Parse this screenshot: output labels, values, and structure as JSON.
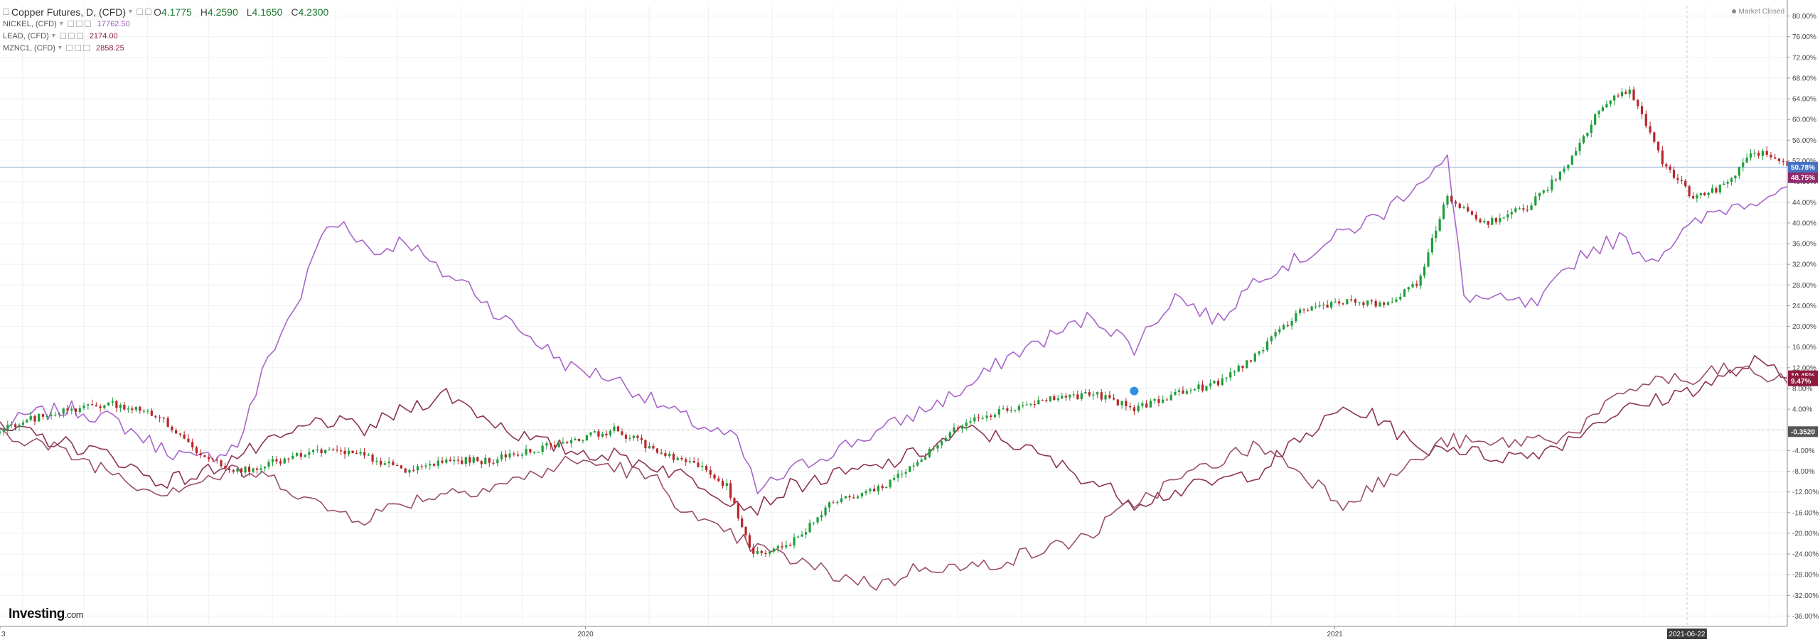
{
  "legend": {
    "main": {
      "name": "Copper Futures, D, (CFD)",
      "open": "4.1775",
      "high": "4.2590",
      "low": "4.1650",
      "close": "4.2300",
      "open_key": "O",
      "high_key": "H",
      "low_key": "L",
      "close_key": "C"
    },
    "overlays": [
      {
        "name": "NICKEL, (CFD)",
        "value": "17762.50",
        "color": "#9b59b6"
      },
      {
        "name": "LEAD, (CFD)",
        "value": "2174.00",
        "color": "#8b1a4a"
      },
      {
        "name": "MZNC1, (CFD)",
        "value": "2858.25",
        "color": "#8b1a4a"
      }
    ]
  },
  "status": {
    "market": "Market Closed"
  },
  "brand": {
    "name": "Investing",
    "domain": ".com"
  },
  "colors": {
    "up": "#1f9e3c",
    "down": "#b8262b",
    "nickel": "#a865c9",
    "lead": "#8e3355",
    "zinc": "#9a4d6e",
    "accent_blue": "#4472c4",
    "grid": "#eef0f2",
    "baseline": "#c9c9c9"
  },
  "chart_data": {
    "type": "line",
    "y_unit": "%",
    "ylim": [
      -38,
      82
    ],
    "y_ticks": [
      "80.00%",
      "76.00%",
      "72.00%",
      "68.00%",
      "64.00%",
      "60.00%",
      "56.00%",
      "52.00%",
      "48.00%",
      "44.00%",
      "40.00%",
      "36.00%",
      "32.00%",
      "28.00%",
      "24.00%",
      "20.00%",
      "16.00%",
      "12.00%",
      "8.00%",
      "4.00%",
      "0.00%",
      "-4.00%",
      "-8.00%",
      "-12.00%",
      "-16.00%",
      "-20.00%",
      "-24.00%",
      "-28.00%",
      "-32.00%",
      "-36.00%"
    ],
    "x_range": [
      "2019-03-21",
      "2021-08-10"
    ],
    "x_tick_labels": [
      {
        "date": "2019-03-21",
        "label": "3"
      },
      {
        "date": "2020-01-01",
        "label": "2020"
      },
      {
        "date": "2021-01-01",
        "label": "2021"
      }
    ],
    "highlight_date": {
      "date": "2021-06-22",
      "label": "2021-06-22"
    },
    "price_labels": [
      {
        "value": 50.78,
        "text": "50.78%",
        "color": "#4472c4"
      },
      {
        "value": 48.75,
        "text": "48.75%",
        "color": "#8e2a6a"
      },
      {
        "value": 10.45,
        "text": "10.45%",
        "color": "#8e1a3e"
      },
      {
        "value": 9.47,
        "text": "9.47%",
        "color": "#8e1a3e"
      },
      {
        "value": -0.352,
        "text": "-0.3520",
        "color": "#555555"
      }
    ],
    "baseline_value": 0,
    "horizontal_line_value": 50.78,
    "series": [
      {
        "name": "Copper Futures, D, (CFD)",
        "kind": "candles",
        "x": [
          "2019-03-21",
          "2019-04-05",
          "2019-04-25",
          "2019-05-15",
          "2019-06-05",
          "2019-06-25",
          "2019-07-15",
          "2019-08-05",
          "2019-08-25",
          "2019-09-15",
          "2019-10-05",
          "2019-10-25",
          "2019-11-15",
          "2019-12-05",
          "2019-12-25",
          "2020-01-15",
          "2020-02-05",
          "2020-02-25",
          "2020-03-10",
          "2020-03-23",
          "2020-04-10",
          "2020-05-01",
          "2020-05-25",
          "2020-06-15",
          "2020-07-05",
          "2020-07-25",
          "2020-08-15",
          "2020-09-05",
          "2020-09-25",
          "2020-10-15",
          "2020-11-05",
          "2020-11-25",
          "2020-12-15",
          "2021-01-05",
          "2021-01-25",
          "2021-02-10",
          "2021-02-25",
          "2021-03-15",
          "2021-04-05",
          "2021-04-25",
          "2021-05-10",
          "2021-05-25",
          "2021-06-10",
          "2021-06-25",
          "2021-07-10",
          "2021-07-25",
          "2021-08-10"
        ],
        "values": [
          0,
          2,
          4,
          5,
          3,
          -4,
          -8,
          -6,
          -4,
          -5,
          -8,
          -6,
          -6,
          -4,
          -2,
          0,
          -4,
          -7,
          -11,
          -24,
          -22,
          -14,
          -11,
          -5,
          2,
          4,
          6,
          7,
          4,
          7,
          9,
          15,
          23,
          25,
          24,
          28,
          45,
          40,
          43,
          51,
          62,
          66,
          52,
          45,
          47,
          54,
          51
        ]
      },
      {
        "name": "NICKEL, (CFD)",
        "kind": "line",
        "x": [
          "2019-03-21",
          "2019-04-05",
          "2019-04-25",
          "2019-05-15",
          "2019-06-05",
          "2019-06-25",
          "2019-07-15",
          "2019-07-30",
          "2019-08-15",
          "2019-08-25",
          "2019-09-05",
          "2019-09-20",
          "2019-10-05",
          "2019-10-20",
          "2019-11-05",
          "2019-11-20",
          "2019-12-05",
          "2019-12-25",
          "2020-01-15",
          "2020-02-05",
          "2020-02-25",
          "2020-03-15",
          "2020-03-25",
          "2020-04-10",
          "2020-05-01",
          "2020-05-25",
          "2020-06-15",
          "2020-07-05",
          "2020-07-25",
          "2020-08-15",
          "2020-09-05",
          "2020-09-25",
          "2020-10-15",
          "2020-11-05",
          "2020-11-25",
          "2020-12-15",
          "2021-01-05",
          "2021-01-25",
          "2021-02-10",
          "2021-02-25",
          "2021-03-05",
          "2021-03-20",
          "2021-04-10",
          "2021-05-01",
          "2021-05-20",
          "2021-06-05",
          "2021-06-20",
          "2021-07-05",
          "2021-07-20",
          "2021-08-10"
        ],
        "values": [
          0,
          3,
          4,
          2,
          -3,
          -6,
          -3,
          14,
          26,
          38,
          40,
          34,
          37,
          31,
          28,
          22,
          18,
          12,
          10,
          5,
          1,
          -2,
          -12,
          -8,
          -4,
          0,
          4,
          8,
          14,
          18,
          22,
          16,
          26,
          21,
          30,
          33,
          38,
          42,
          48,
          52,
          26,
          25,
          24,
          34,
          37,
          33,
          38,
          42,
          44,
          47
        ]
      },
      {
        "name": "LEAD, (CFD)",
        "kind": "line",
        "x": [
          "2019-03-21",
          "2019-04-05",
          "2019-04-25",
          "2019-05-15",
          "2019-06-05",
          "2019-06-25",
          "2019-07-15",
          "2019-08-05",
          "2019-08-25",
          "2019-09-15",
          "2019-10-05",
          "2019-10-25",
          "2019-11-15",
          "2019-12-05",
          "2019-12-25",
          "2020-01-15",
          "2020-02-05",
          "2020-02-25",
          "2020-03-15",
          "2020-03-25",
          "2020-04-10",
          "2020-05-01",
          "2020-05-25",
          "2020-06-15",
          "2020-07-05",
          "2020-07-25",
          "2020-08-15",
          "2020-09-05",
          "2020-09-25",
          "2020-10-15",
          "2020-11-05",
          "2020-11-25",
          "2020-12-15",
          "2021-01-05",
          "2021-01-25",
          "2021-02-10",
          "2021-02-25",
          "2021-03-15",
          "2021-04-05",
          "2021-04-25",
          "2021-05-10",
          "2021-05-25",
          "2021-06-10",
          "2021-06-25",
          "2021-07-10",
          "2021-07-25",
          "2021-08-10"
        ],
        "values": [
          0,
          -1,
          -3,
          -5,
          -10,
          -9,
          -5,
          -2,
          2,
          0,
          4,
          7,
          2,
          -2,
          -4,
          -5,
          -7,
          -10,
          -14,
          -15,
          -11,
          -9,
          -7,
          -4,
          0,
          -2,
          -6,
          -10,
          -14,
          -12,
          -10,
          -8,
          -2,
          4,
          2,
          -4,
          -3,
          -5,
          -5,
          -2,
          2,
          4,
          6,
          8,
          10,
          13,
          10
        ]
      },
      {
        "name": "MZNC1, (CFD)",
        "kind": "line",
        "x": [
          "2019-03-21",
          "2019-04-05",
          "2019-04-25",
          "2019-05-15",
          "2019-06-05",
          "2019-06-25",
          "2019-07-15",
          "2019-08-05",
          "2019-08-25",
          "2019-09-15",
          "2019-10-05",
          "2019-10-25",
          "2019-11-15",
          "2019-12-05",
          "2019-12-25",
          "2020-01-15",
          "2020-02-05",
          "2020-02-25",
          "2020-03-15",
          "2020-03-25",
          "2020-04-10",
          "2020-05-01",
          "2020-05-25",
          "2020-06-15",
          "2020-07-05",
          "2020-07-25",
          "2020-08-15",
          "2020-09-05",
          "2020-09-25",
          "2020-10-15",
          "2020-11-05",
          "2020-11-25",
          "2020-12-15",
          "2021-01-05",
          "2021-01-25",
          "2021-02-10",
          "2021-02-25",
          "2021-03-15",
          "2021-04-05",
          "2021-04-25",
          "2021-05-10",
          "2021-05-25",
          "2021-06-10",
          "2021-06-25",
          "2021-07-10",
          "2021-07-25",
          "2021-08-10"
        ],
        "values": [
          0,
          -2,
          -5,
          -8,
          -12,
          -10,
          -8,
          -10,
          -15,
          -17,
          -14,
          -12,
          -11,
          -9,
          -6,
          -7,
          -10,
          -18,
          -21,
          -23,
          -25,
          -28,
          -30,
          -26,
          -27,
          -25,
          -23,
          -20,
          -14,
          -10,
          -6,
          -3,
          -8,
          -14,
          -10,
          -6,
          -2,
          -3,
          -2,
          -1,
          3,
          8,
          10,
          9,
          12,
          11,
          9
        ]
      }
    ]
  }
}
